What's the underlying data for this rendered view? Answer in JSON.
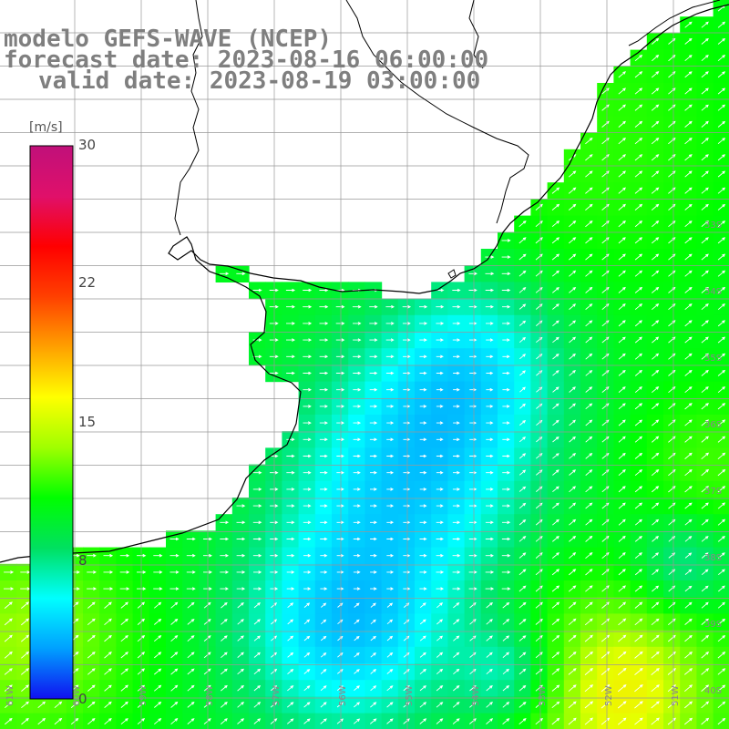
{
  "title": {
    "model": "modelo GEFS-WAVE (NCEP)",
    "forecast": "forecast date: 2023-08-16 06:00:00",
    "valid": "valid date: 2023-08-19 03:00:00"
  },
  "colorbar": {
    "units": "[m/s]",
    "min": 0,
    "max": 30,
    "ticks": [
      "30",
      "22",
      "15",
      "8",
      "0"
    ],
    "colors": [
      "#1010f0",
      "#00a0ff",
      "#00ffff",
      "#00e060",
      "#00ff00",
      "#a0ff00",
      "#ffff00",
      "#ffa000",
      "#ff4000",
      "#ff0000",
      "#e0106a",
      "#c0107a"
    ]
  },
  "grid": {
    "lat_labels": [
      "33S",
      "34S",
      "35S",
      "36S",
      "37S",
      "38S",
      "39S",
      "40S",
      "41S"
    ],
    "lon_labels": [
      "61W",
      "60W",
      "59W",
      "58W",
      "57W",
      "56W",
      "55W",
      "54W",
      "53W",
      "52W",
      "51W"
    ]
  },
  "colors": {
    "land": "#ffffff",
    "coast": "#000000",
    "grid": "#999999",
    "title": "#7f7f7f",
    "arrow": "#ffffff"
  }
}
